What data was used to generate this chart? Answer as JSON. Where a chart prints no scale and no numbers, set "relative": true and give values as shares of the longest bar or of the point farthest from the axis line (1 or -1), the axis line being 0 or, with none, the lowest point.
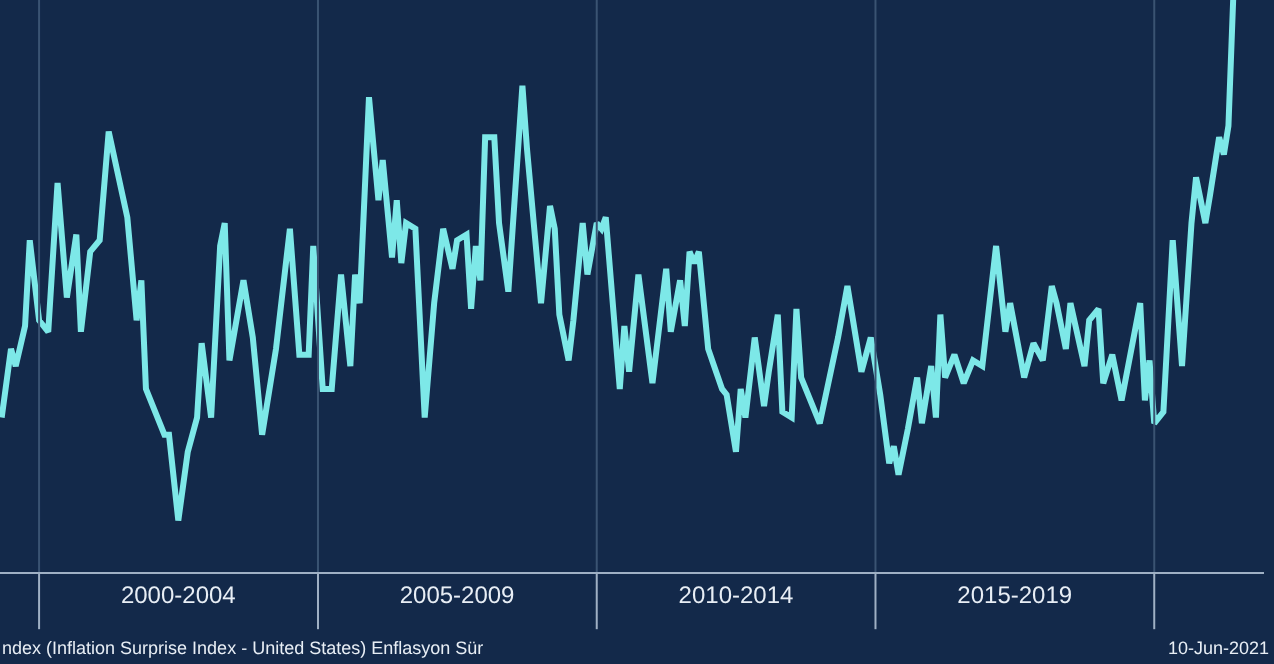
{
  "chart_data": {
    "type": "line",
    "relative": true,
    "grid": "x",
    "tick_labels": "x",
    "xlim": [
      "1999-04-20",
      "2021-12-20"
    ],
    "xticks": [
      {
        "value": "2000-01-01",
        "label": null
      },
      {
        "value": "2002-07-01",
        "label": "2000-2004"
      },
      {
        "value": "2005-01-01",
        "label": null
      },
      {
        "value": "2007-07-01",
        "label": "2005-2009"
      },
      {
        "value": "2010-01-01",
        "label": null
      },
      {
        "value": "2012-07-01",
        "label": "2010-2014"
      },
      {
        "value": "2015-01-01",
        "label": null
      },
      {
        "value": "2017-07-01",
        "label": "2015-2019"
      },
      {
        "value": "2020-01-01",
        "label": null
      }
    ],
    "annotations": [
      "ndex (Inflation Surprise Index - United States) Enflasyon Sür",
      "10-Jun-2021"
    ],
    "series": [
      {
        "color": "#7de8e8",
        "x": [
          "1999-05",
          "1999-07",
          "1999-08",
          "1999-10",
          "1999-11",
          "2000-01",
          "2000-03",
          "2000-05",
          "2000-07",
          "2000-09",
          "2000-10",
          "2000-12",
          "2001-02",
          "2001-04",
          "2001-08",
          "2001-10",
          "2001-11",
          "2001-12",
          "2002-04",
          "2002-05",
          "2002-07",
          "2002-09",
          "2002-11",
          "2002-12",
          "2003-02",
          "2003-04",
          "2003-05",
          "2003-06",
          "2003-09",
          "2003-11",
          "2004-01",
          "2004-04",
          "2004-07",
          "2004-09",
          "2004-11",
          "2004-12",
          "2005-02",
          "2005-04",
          "2005-06",
          "2005-08",
          "2005-09",
          "2005-10",
          "2005-12",
          "2006-02",
          "2006-03",
          "2006-05",
          "2006-06",
          "2006-07",
          "2006-08",
          "2006-10",
          "2006-12",
          "2007-02",
          "2007-04",
          "2007-06",
          "2007-07",
          "2007-09",
          "2007-10",
          "2007-11",
          "2007-12",
          "2008-01",
          "2008-03",
          "2008-04",
          "2008-06",
          "2008-09",
          "2008-10",
          "2009-01",
          "2009-03",
          "2009-04",
          "2009-05",
          "2009-07",
          "2009-08",
          "2009-10",
          "2009-11",
          "2010-01",
          "2010-02",
          "2010-03",
          "2010-06",
          "2010-07",
          "2010-08",
          "2010-10",
          "2011-01",
          "2011-04",
          "2011-05",
          "2011-07",
          "2011-08",
          "2011-09",
          "2011-10",
          "2011-11",
          "2012-01",
          "2012-04",
          "2012-05",
          "2012-07",
          "2012-08",
          "2012-09",
          "2012-11",
          "2013-01",
          "2013-02",
          "2013-04",
          "2013-05",
          "2013-07",
          "2013-08",
          "2013-09",
          "2014-01",
          "2014-05",
          "2014-07",
          "2014-10",
          "2014-12",
          "2015-02",
          "2015-04",
          "2015-05",
          "2015-06",
          "2015-08",
          "2015-10",
          "2015-11",
          "2016-01",
          "2016-02",
          "2016-03",
          "2016-04",
          "2016-06",
          "2016-08",
          "2016-10",
          "2016-12",
          "2017-03",
          "2017-05",
          "2017-06",
          "2017-09",
          "2017-11",
          "2018-01",
          "2018-03",
          "2018-04",
          "2018-06",
          "2018-07",
          "2018-10",
          "2018-11",
          "2019-01",
          "2019-02",
          "2019-04",
          "2019-06",
          "2019-10",
          "2019-11",
          "2019-12",
          "2020-01",
          "2020-03",
          "2020-05",
          "2020-07",
          "2020-09",
          "2020-10",
          "2020-12",
          "2021-01",
          "2021-03",
          "2021-04",
          "2021-05",
          "2021-06"
        ],
        "values": [
          0.27,
          0.39,
          0.36,
          0.43,
          0.58,
          0.44,
          0.42,
          0.68,
          0.48,
          0.59,
          0.42,
          0.56,
          0.58,
          0.77,
          0.62,
          0.44,
          0.51,
          0.32,
          0.24,
          0.24,
          0.09,
          0.21,
          0.27,
          0.4,
          0.27,
          0.57,
          0.61,
          0.37,
          0.51,
          0.41,
          0.24,
          0.39,
          0.6,
          0.38,
          0.38,
          0.57,
          0.32,
          0.32,
          0.52,
          0.36,
          0.52,
          0.47,
          0.83,
          0.65,
          0.72,
          0.55,
          0.65,
          0.54,
          0.61,
          0.6,
          0.27,
          0.47,
          0.6,
          0.53,
          0.58,
          0.59,
          0.46,
          0.57,
          0.51,
          0.76,
          0.76,
          0.61,
          0.49,
          0.85,
          0.74,
          0.47,
          0.64,
          0.6,
          0.45,
          0.37,
          0.44,
          0.61,
          0.52,
          0.61,
          0.6,
          0.62,
          0.32,
          0.43,
          0.35,
          0.52,
          0.33,
          0.53,
          0.42,
          0.51,
          0.43,
          0.56,
          0.54,
          0.56,
          0.39,
          0.32,
          0.31,
          0.21,
          0.32,
          0.27,
          0.41,
          0.29,
          0.35,
          0.45,
          0.28,
          0.27,
          0.46,
          0.34,
          0.26,
          0.41,
          0.5,
          0.35,
          0.41,
          0.31,
          0.19,
          0.22,
          0.17,
          0.25,
          0.34,
          0.26,
          0.36,
          0.27,
          0.45,
          0.34,
          0.38,
          0.33,
          0.37,
          0.36,
          0.57,
          0.42,
          0.47,
          0.34,
          0.4,
          0.37,
          0.5,
          0.47,
          0.39,
          0.47,
          0.36,
          0.44,
          0.46,
          0.33,
          0.38,
          0.3,
          0.47,
          0.3,
          0.37,
          0.26,
          0.28,
          0.58,
          0.36,
          0.61,
          0.69,
          0.61,
          0.66,
          0.76,
          0.73,
          0.78,
          1
        ]
      }
    ]
  }
}
